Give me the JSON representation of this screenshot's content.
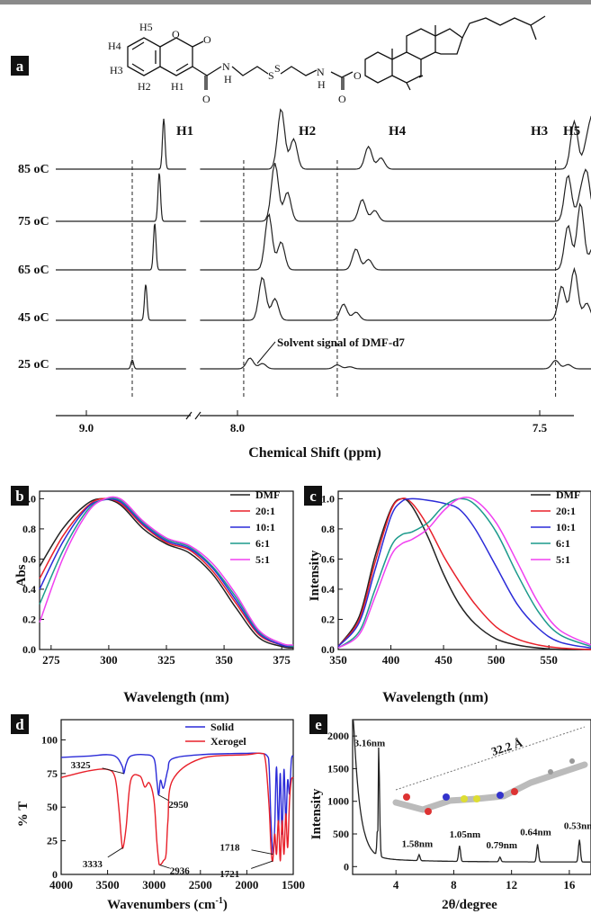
{
  "figure_labels": [
    "a",
    "b",
    "c",
    "d",
    "e"
  ],
  "colors": {
    "black": "#222222",
    "red": "#e8202a",
    "blue": "#2b2bd8",
    "teal": "#1c9a8c",
    "magenta": "#f040f0",
    "panel_label_bg": "#111111"
  },
  "molecule_labels": [
    "H5",
    "H4",
    "H3",
    "H2",
    "H1",
    "O",
    "O",
    "O",
    "N",
    "H",
    "S",
    "S",
    "N",
    "H",
    "O",
    "O",
    "H",
    "H",
    "H"
  ],
  "chart_data": [
    {
      "panel": "a",
      "type": "line",
      "title": "",
      "xlabel": "Chemical Shift (ppm)",
      "ylabel": "",
      "x_ticks": [
        "9.0",
        "8.0",
        "7.5"
      ],
      "axis_break": true,
      "series": [
        {
          "name": "85 oC",
          "peaks": [
            {
              "ppm": 8.72,
              "label": "H1"
            },
            {
              "ppm": 7.93,
              "label": "H2"
            },
            {
              "ppm": 7.79,
              "label": "H4"
            },
            {
              "ppm": 7.46,
              "label": "H3"
            },
            {
              "ppm": 7.43,
              "label": "H5"
            }
          ]
        },
        {
          "name": "75 oC",
          "peaks": [
            {
              "ppm": 8.74
            },
            {
              "ppm": 7.94
            },
            {
              "ppm": 7.8
            },
            {
              "ppm": 7.47
            },
            {
              "ppm": 7.44
            }
          ]
        },
        {
          "name": "65 oC",
          "peaks": [
            {
              "ppm": 8.76
            },
            {
              "ppm": 7.95
            },
            {
              "ppm": 7.81
            },
            {
              "ppm": 7.47
            },
            {
              "ppm": 7.45
            }
          ]
        },
        {
          "name": "45 oC",
          "peaks": [
            {
              "ppm": 8.8
            },
            {
              "ppm": 7.96
            },
            {
              "ppm": 7.83
            },
            {
              "ppm": 7.48
            },
            {
              "ppm": 7.46
            }
          ]
        },
        {
          "name": "25 oC",
          "peaks": [
            {
              "ppm": 8.86
            },
            {
              "ppm": 7.98
            },
            {
              "ppm": 7.84
            },
            {
              "ppm": 7.49
            }
          ]
        }
      ],
      "temperatures": [
        "85 oC",
        "75 oC",
        "65 oC",
        "45 oC",
        "25 oC"
      ],
      "peak_labels": [
        "H1",
        "H2",
        "H4",
        "H3",
        "H5"
      ],
      "annotations": [
        "Solvent signal of DMF-d7"
      ]
    },
    {
      "panel": "b",
      "type": "line",
      "xlabel": "Wavelength (nm)",
      "ylabel": "Abs",
      "xlim": [
        270,
        380
      ],
      "ylim": [
        0.0,
        1.05
      ],
      "x_ticks": [
        275,
        300,
        325,
        350,
        375
      ],
      "y_ticks": [
        "0.0",
        "0.2",
        "0.4",
        "0.6",
        "0.8",
        "1.0"
      ],
      "legend": "top-right",
      "x": [
        270,
        280,
        290,
        297,
        305,
        315,
        325,
        335,
        345,
        355,
        365,
        375,
        380
      ],
      "series": [
        {
          "name": "DMF",
          "color": "#222222",
          "values": [
            0.55,
            0.8,
            0.96,
            1.0,
            0.96,
            0.8,
            0.7,
            0.64,
            0.5,
            0.28,
            0.08,
            0.02,
            0.01
          ]
        },
        {
          "name": "20:1",
          "color": "#e8202a",
          "values": [
            0.47,
            0.75,
            0.94,
            1.0,
            0.97,
            0.82,
            0.71,
            0.66,
            0.52,
            0.31,
            0.1,
            0.03,
            0.02
          ]
        },
        {
          "name": "10:1",
          "color": "#2b2bd8",
          "values": [
            0.4,
            0.71,
            0.93,
            0.99,
            0.98,
            0.83,
            0.72,
            0.67,
            0.54,
            0.33,
            0.11,
            0.03,
            0.02
          ]
        },
        {
          "name": "6:1",
          "color": "#1c9a8c",
          "values": [
            0.3,
            0.65,
            0.91,
            0.99,
            0.99,
            0.84,
            0.73,
            0.68,
            0.55,
            0.35,
            0.12,
            0.04,
            0.02
          ]
        },
        {
          "name": "5:1",
          "color": "#f040f0",
          "values": [
            0.18,
            0.6,
            0.89,
            0.99,
            1.0,
            0.85,
            0.74,
            0.69,
            0.57,
            0.37,
            0.13,
            0.04,
            0.03
          ]
        }
      ]
    },
    {
      "panel": "c",
      "type": "line",
      "xlabel": "Wavelength (nm)",
      "ylabel": "Intensity",
      "xlim": [
        350,
        590
      ],
      "ylim": [
        0.0,
        1.05
      ],
      "x_ticks": [
        350,
        400,
        450,
        500,
        550
      ],
      "y_ticks": [
        "0.0",
        "0.2",
        "0.4",
        "0.6",
        "0.8",
        "1.0"
      ],
      "legend": "top-right",
      "x": [
        350,
        370,
        385,
        400,
        410,
        420,
        435,
        450,
        465,
        480,
        500,
        520,
        540,
        560,
        590
      ],
      "series": [
        {
          "name": "DMF",
          "color": "#222222",
          "values": [
            0.02,
            0.22,
            0.62,
            0.93,
            1.0,
            0.95,
            0.75,
            0.5,
            0.3,
            0.17,
            0.07,
            0.03,
            0.01,
            0.0,
            0.0
          ]
        },
        {
          "name": "20:1",
          "color": "#e8202a",
          "values": [
            0.02,
            0.2,
            0.58,
            0.92,
            1.0,
            0.97,
            0.82,
            0.62,
            0.45,
            0.3,
            0.15,
            0.07,
            0.03,
            0.01,
            0.0
          ]
        },
        {
          "name": "10:1",
          "color": "#2b2bd8",
          "values": [
            0.02,
            0.18,
            0.53,
            0.88,
            0.98,
            1.0,
            0.99,
            0.97,
            0.93,
            0.8,
            0.55,
            0.3,
            0.14,
            0.05,
            0.01
          ]
        },
        {
          "name": "6:1",
          "color": "#1c9a8c",
          "values": [
            0.01,
            0.12,
            0.4,
            0.68,
            0.76,
            0.78,
            0.84,
            0.95,
            1.0,
            0.96,
            0.78,
            0.5,
            0.25,
            0.1,
            0.02
          ]
        },
        {
          "name": "5:1",
          "color": "#f040f0",
          "values": [
            0.01,
            0.1,
            0.35,
            0.62,
            0.7,
            0.73,
            0.8,
            0.92,
            1.0,
            0.99,
            0.84,
            0.58,
            0.31,
            0.13,
            0.03
          ]
        }
      ]
    },
    {
      "panel": "d",
      "type": "line",
      "xlabel": "Wavenumbers (cm-1)",
      "xlabel_parts": [
        "Wavenumbers (cm",
        "-1",
        ")"
      ],
      "ylabel": "% T",
      "xlim": [
        4000,
        1500
      ],
      "ylim": [
        0,
        115
      ],
      "x_ticks": [
        4000,
        3500,
        3000,
        2500,
        2000,
        1500
      ],
      "y_ticks": [
        0,
        25,
        50,
        75,
        100
      ],
      "legend": "top-right",
      "series": [
        {
          "name": "Solid",
          "color": "#2b2bd8",
          "x": [
            4000,
            3700,
            3500,
            3400,
            3340,
            3325,
            3300,
            3250,
            3100,
            3000,
            2970,
            2950,
            2930,
            2900,
            2870,
            2850,
            2800,
            2500,
            2000,
            1850,
            1780,
            1760,
            1740,
            1718,
            1700,
            1680,
            1660,
            1640,
            1620,
            1600,
            1580,
            1560,
            1540,
            1520,
            1500
          ],
          "values": [
            87,
            88,
            89,
            87,
            80,
            75,
            82,
            88,
            89,
            86,
            70,
            59,
            70,
            64,
            72,
            78,
            86,
            89,
            90,
            90,
            88,
            80,
            40,
            15,
            35,
            80,
            35,
            75,
            30,
            78,
            40,
            70,
            60,
            85,
            88
          ]
        },
        {
          "name": "Xerogel",
          "color": "#e8202a",
          "x": [
            4000,
            3700,
            3500,
            3420,
            3380,
            3350,
            3333,
            3300,
            3250,
            3150,
            3100,
            3050,
            3000,
            2970,
            2950,
            2936,
            2900,
            2870,
            2850,
            2800,
            2500,
            2000,
            1850,
            1800,
            1760,
            1740,
            1721,
            1700,
            1680,
            1660,
            1640,
            1620,
            1600,
            1580,
            1560,
            1540,
            1520,
            1500
          ],
          "values": [
            72,
            77,
            78,
            72,
            50,
            25,
            20,
            35,
            70,
            73,
            65,
            68,
            55,
            25,
            10,
            7,
            10,
            15,
            40,
            70,
            86,
            89,
            90,
            85,
            50,
            20,
            10,
            30,
            15,
            40,
            10,
            40,
            15,
            45,
            20,
            55,
            70,
            72
          ]
        }
      ],
      "annotations": [
        "3325",
        "3333",
        "2950",
        "2936",
        "1718",
        "1721"
      ]
    },
    {
      "panel": "e",
      "type": "line",
      "xlabel": "2θ/degree",
      "ylabel": "Intensity",
      "xlim": [
        1,
        17.5
      ],
      "ylim": [
        -120,
        2250
      ],
      "x_ticks": [
        4,
        8,
        12,
        16
      ],
      "y_ticks": [
        0,
        500,
        1000,
        1500,
        2000
      ],
      "series": [
        {
          "name": "",
          "color": "#222222",
          "peaks": [
            {
              "two_theta": 2.8,
              "intensity": 1660,
              "label": "3.16nm"
            },
            {
              "two_theta": 5.6,
              "intensity": 90,
              "label": "1.58nm"
            },
            {
              "two_theta": 8.4,
              "intensity": 240,
              "label": "1.05nm"
            },
            {
              "two_theta": 11.2,
              "intensity": 70,
              "label": "0.79nm"
            },
            {
              "two_theta": 13.8,
              "intensity": 270,
              "label": "0.64nm"
            },
            {
              "two_theta": 16.7,
              "intensity": 340,
              "label": "0.53nm"
            }
          ]
        }
      ],
      "annotations": [
        "3.16nm",
        "1.58nm",
        "1.05nm",
        "0.79nm",
        "0.64nm",
        "0.53nm",
        "32.2 Å"
      ]
    }
  ]
}
